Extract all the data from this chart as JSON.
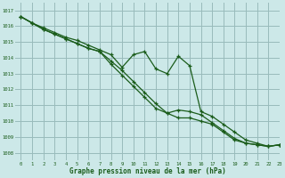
{
  "title": "Graphe pression niveau de la mer (hPa)",
  "bg_color": "#cce8e8",
  "grid_color": "#99bbbb",
  "line_color": "#1a5c1a",
  "xlim": [
    -0.5,
    23
  ],
  "ylim": [
    1007.5,
    1017.5
  ],
  "xticks": [
    0,
    1,
    2,
    3,
    4,
    5,
    6,
    7,
    8,
    9,
    10,
    11,
    12,
    13,
    14,
    15,
    16,
    17,
    18,
    19,
    20,
    21,
    22,
    23
  ],
  "yticks": [
    1008,
    1009,
    1010,
    1011,
    1012,
    1013,
    1014,
    1015,
    1016,
    1017
  ],
  "series1": [
    1016.6,
    1016.2,
    1015.8,
    1015.5,
    1015.2,
    1014.9,
    1014.6,
    1014.4,
    1013.8,
    1013.2,
    1012.5,
    1011.8,
    1011.1,
    1010.5,
    1010.2,
    1010.2,
    1010.0,
    1009.8,
    1009.3,
    1008.8,
    1008.6,
    1008.5,
    1008.4,
    1008.5
  ],
  "series2": [
    1016.6,
    1016.2,
    1015.8,
    1015.5,
    1015.2,
    1014.9,
    1014.6,
    1014.4,
    1013.6,
    1012.9,
    1012.2,
    1011.5,
    1010.8,
    1010.5,
    1010.7,
    1010.6,
    1010.4,
    1009.9,
    1009.4,
    1008.9,
    1008.6,
    1008.5,
    1008.4,
    1008.5
  ],
  "series3": [
    1016.6,
    1016.2,
    1015.9,
    1015.6,
    1015.3,
    1015.1,
    1014.8,
    1014.5,
    1014.2,
    1013.4,
    1014.2,
    1014.4,
    1013.3,
    1013.0,
    1014.1,
    1013.5,
    1010.6,
    1010.3,
    1009.8,
    1009.3,
    1008.8,
    1008.6,
    1008.4,
    1008.5
  ]
}
